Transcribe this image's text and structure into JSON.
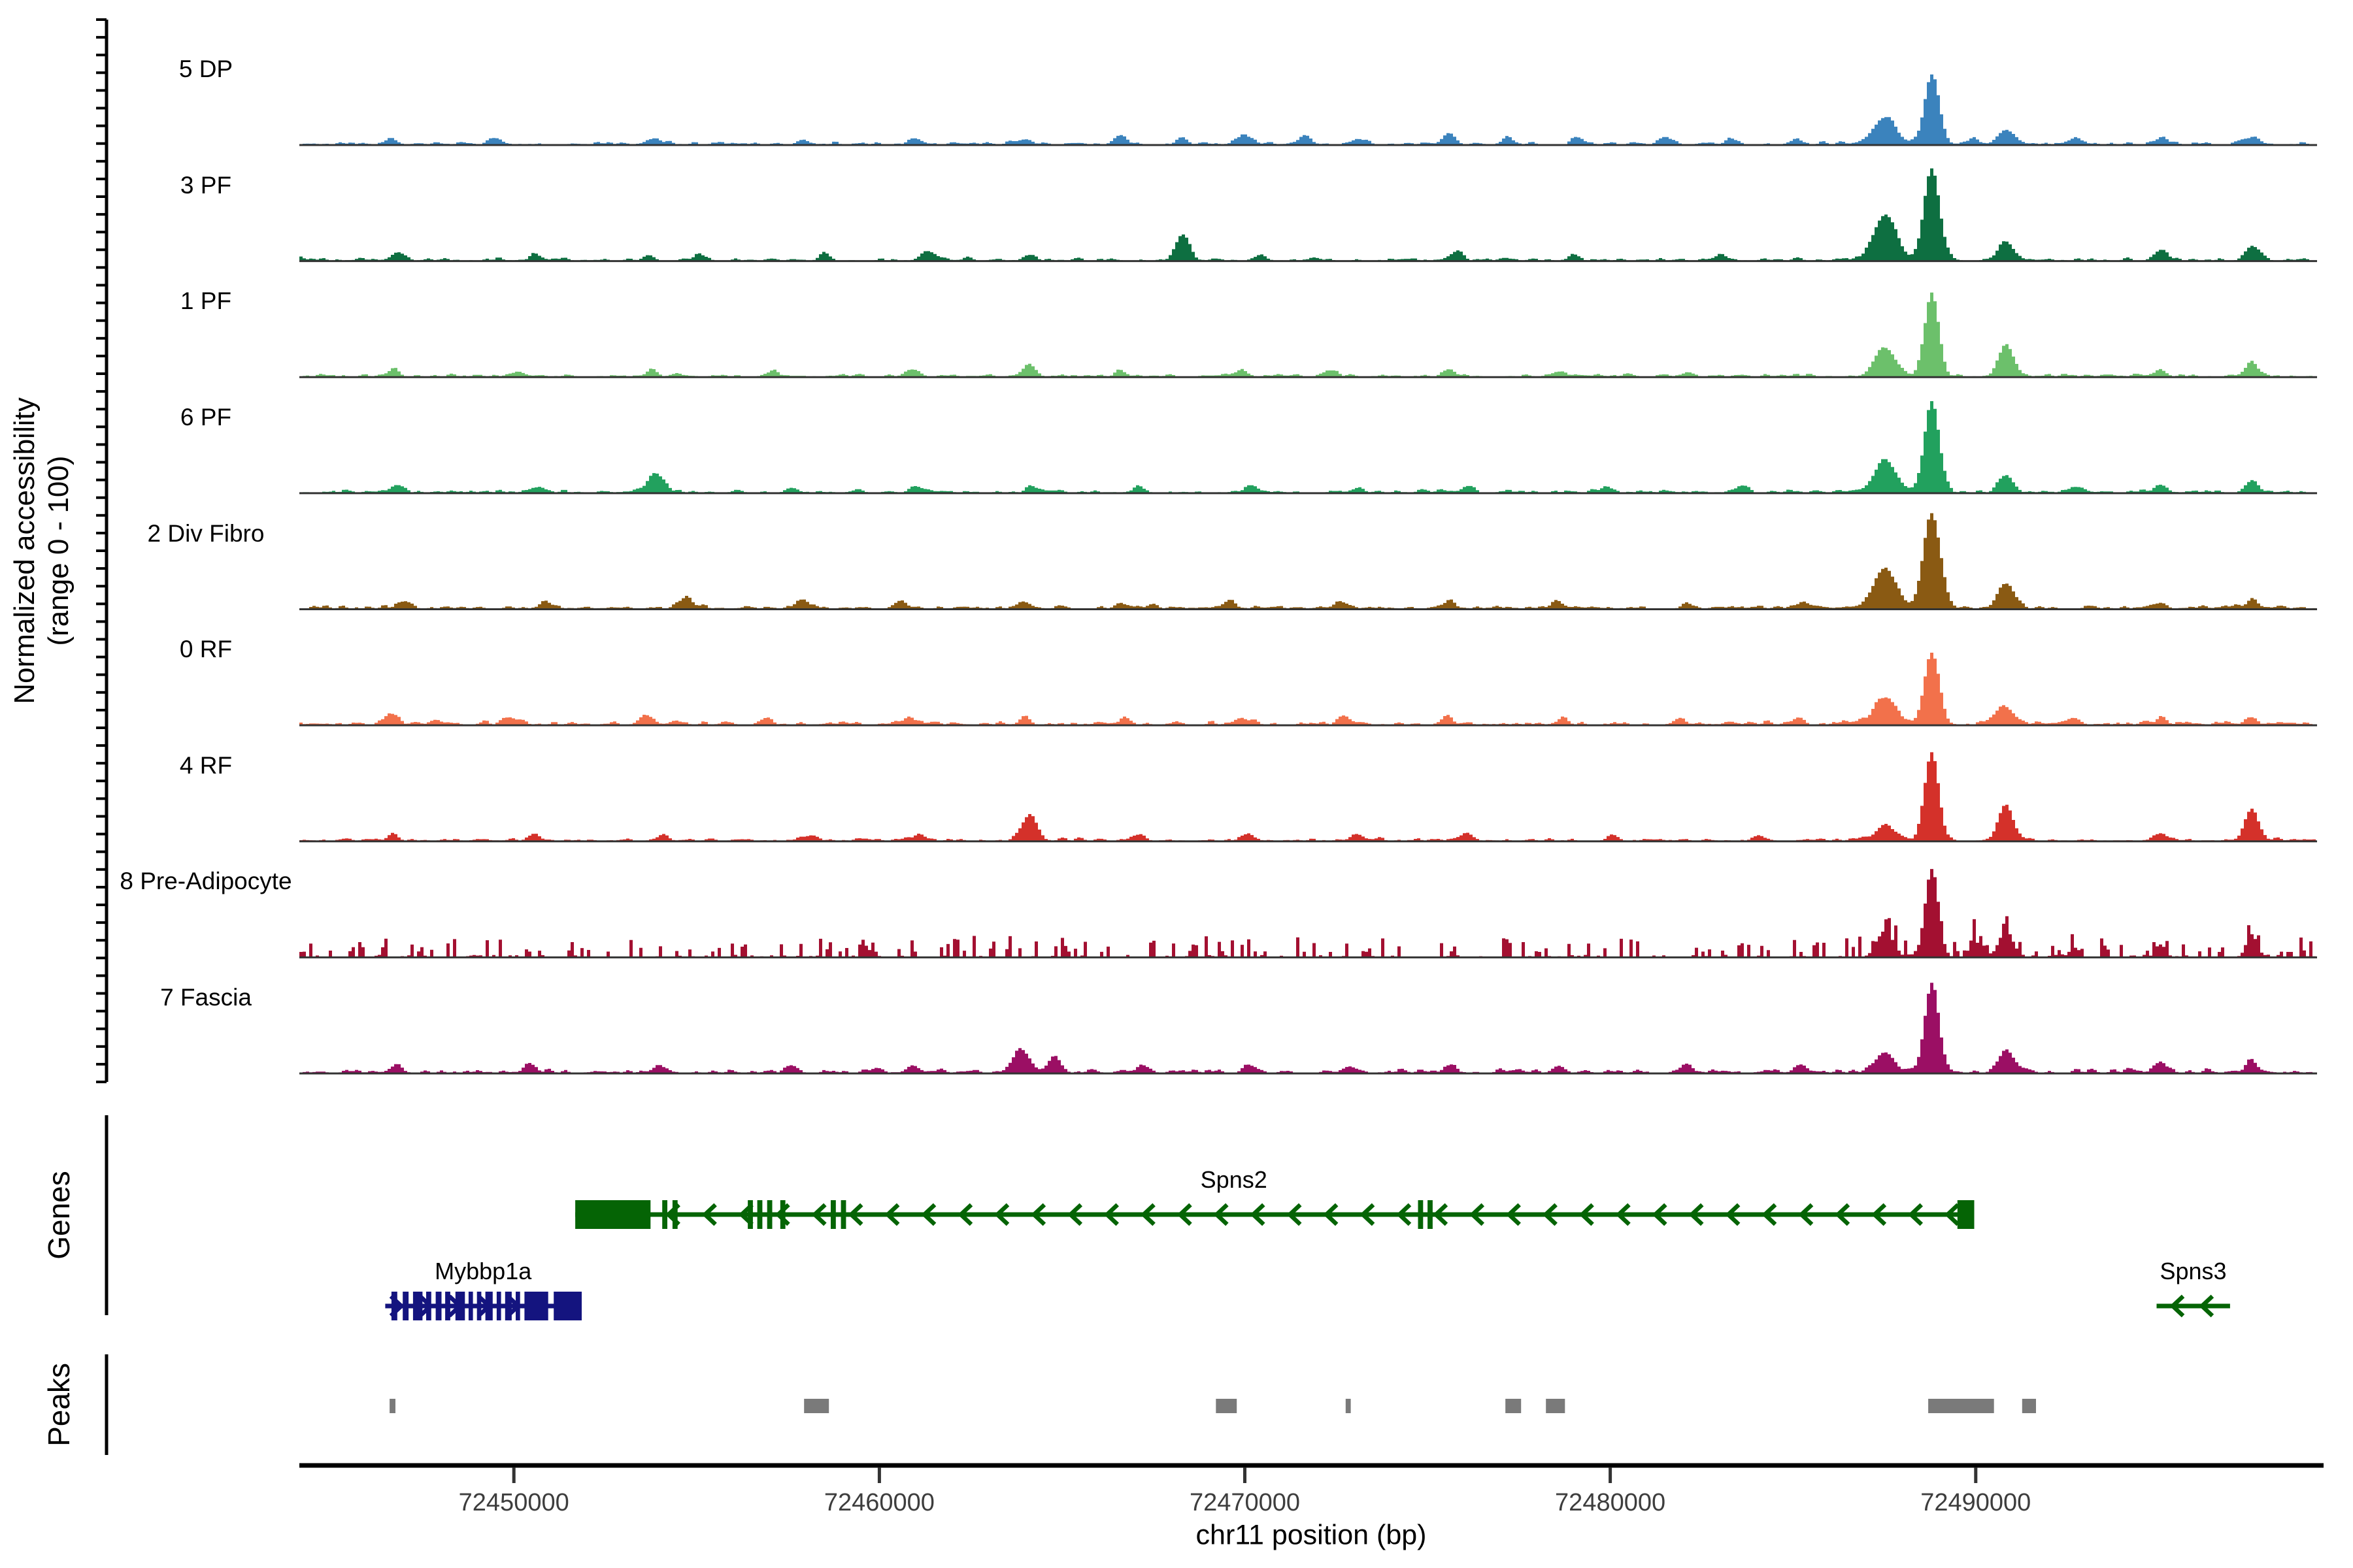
{
  "labels": {
    "y_axis_line1": "Normalized accessibility",
    "y_axis_line2": "(range 0 - 100)",
    "genes_section": "Genes",
    "peaks_section": "Peaks",
    "x_axis_title": "chr11 position (bp)"
  },
  "chart_data": {
    "type": "area",
    "subtype": "genome-browser-coverage-tracks",
    "region": {
      "chromosome": "chr11",
      "start": 72444130,
      "end": 72499340
    },
    "ylabel": "Normalized accessibility (range 0 - 100)",
    "xlabel": "chr11 position (bp)",
    "x_ticks": [
      72450000,
      72460000,
      72470000,
      72480000,
      72490000
    ],
    "y_range_per_track": [
      0,
      100
    ],
    "grid": false,
    "tracks": [
      {
        "label": "5 DP",
        "color": "#3b83bd",
        "noise": 7,
        "noise_style": "smooth",
        "peaks": [
          [
            72487520,
            28,
            680
          ],
          [
            72488800,
            74,
            440
          ],
          [
            72489950,
            7,
            260
          ],
          [
            72490830,
            16,
            480
          ],
          [
            72492700,
            6,
            380
          ],
          [
            72495060,
            7,
            350
          ],
          [
            72497560,
            7,
            380
          ],
          [
            72446650,
            7,
            320
          ],
          [
            72449500,
            5,
            400
          ],
          [
            72453800,
            6,
            400
          ],
          [
            72457900,
            5,
            320
          ],
          [
            72461000,
            7,
            350
          ],
          [
            72464000,
            6,
            320
          ],
          [
            72466600,
            9,
            400
          ],
          [
            72468300,
            7,
            320
          ],
          [
            72470000,
            10,
            360
          ],
          [
            72471600,
            8,
            320
          ],
          [
            72473100,
            7,
            320
          ],
          [
            72475600,
            13,
            360
          ],
          [
            72477200,
            8,
            320
          ],
          [
            72479100,
            7,
            320
          ],
          [
            72481500,
            7,
            350
          ],
          [
            72483300,
            6,
            320
          ],
          [
            72485100,
            5,
            320
          ]
        ]
      },
      {
        "label": "3 PF",
        "color": "#0e6f41",
        "noise": 7,
        "noise_style": "smooth",
        "peaks": [
          [
            72487520,
            47,
            700
          ],
          [
            72488800,
            98,
            470
          ],
          [
            72490830,
            20,
            460
          ],
          [
            72495060,
            12,
            360
          ],
          [
            72497560,
            16,
            400
          ],
          [
            72468300,
            27,
            420
          ],
          [
            72446800,
            9,
            350
          ],
          [
            72450600,
            7,
            350
          ],
          [
            72453700,
            6,
            320
          ],
          [
            72455100,
            6,
            320
          ],
          [
            72458500,
            7,
            320
          ],
          [
            72461300,
            10,
            360
          ],
          [
            72464100,
            6,
            320
          ],
          [
            72470400,
            6,
            320
          ],
          [
            72475800,
            8,
            320
          ],
          [
            72479000,
            6,
            320
          ],
          [
            72483000,
            6,
            320
          ]
        ]
      },
      {
        "label": "1 PF",
        "color": "#6cc06b",
        "noise": 7,
        "noise_style": "smooth",
        "peaks": [
          [
            72487520,
            29,
            650
          ],
          [
            72488800,
            89,
            420
          ],
          [
            72490830,
            32,
            460
          ],
          [
            72497560,
            15,
            360
          ],
          [
            72495060,
            7,
            320
          ],
          [
            72464100,
            12,
            400
          ],
          [
            72446700,
            8,
            320
          ],
          [
            72450100,
            6,
            350
          ],
          [
            72453800,
            7,
            320
          ],
          [
            72457100,
            6,
            320
          ],
          [
            72460900,
            8,
            350
          ],
          [
            72466600,
            7,
            320
          ],
          [
            72469900,
            7,
            320
          ],
          [
            72472400,
            6,
            320
          ],
          [
            72475600,
            8,
            320
          ],
          [
            72478600,
            6,
            320
          ],
          [
            72482100,
            5,
            320
          ]
        ]
      },
      {
        "label": "6 PF",
        "color": "#22a15e",
        "noise": 7,
        "noise_style": "smooth",
        "peaks": [
          [
            72487520,
            34,
            660
          ],
          [
            72488800,
            95,
            450
          ],
          [
            72490830,
            18,
            460
          ],
          [
            72495060,
            9,
            320
          ],
          [
            72497560,
            13,
            360
          ],
          [
            72492700,
            7,
            360
          ],
          [
            72453900,
            19,
            500
          ],
          [
            72446800,
            9,
            320
          ],
          [
            72450700,
            6,
            320
          ],
          [
            72457600,
            6,
            320
          ],
          [
            72461000,
            7,
            320
          ],
          [
            72464200,
            6,
            320
          ],
          [
            72467100,
            6,
            320
          ],
          [
            72470200,
            7,
            320
          ],
          [
            72473100,
            5,
            320
          ],
          [
            72476100,
            7,
            320
          ],
          [
            72479900,
            6,
            320
          ],
          [
            72483600,
            8,
            350
          ]
        ]
      },
      {
        "label": "2 Div Fibro",
        "color": "#8a5a13",
        "noise": 8,
        "noise_style": "smooth",
        "peaks": [
          [
            72487520,
            42,
            700
          ],
          [
            72488800,
            100,
            520
          ],
          [
            72490830,
            26,
            500
          ],
          [
            72454700,
            10,
            420
          ],
          [
            72447000,
            8,
            360
          ],
          [
            72450900,
            7,
            350
          ],
          [
            72457900,
            8,
            360
          ],
          [
            72460600,
            8,
            350
          ],
          [
            72463900,
            7,
            320
          ],
          [
            72466600,
            7,
            320
          ],
          [
            72469600,
            8,
            320
          ],
          [
            72472600,
            7,
            320
          ],
          [
            72475600,
            8,
            320
          ],
          [
            72478600,
            7,
            320
          ],
          [
            72482100,
            6,
            320
          ],
          [
            72485300,
            6,
            320
          ],
          [
            72497560,
            8,
            320
          ],
          [
            72495060,
            7,
            320
          ]
        ]
      },
      {
        "label": "0 RF",
        "color": "#f2714b",
        "noise": 9,
        "noise_style": "smooth",
        "peaks": [
          [
            72487520,
            28,
            660
          ],
          [
            72488800,
            76,
            450
          ],
          [
            72490830,
            18,
            500
          ],
          [
            72446650,
            12,
            380
          ],
          [
            72449900,
            7,
            350
          ],
          [
            72453600,
            9,
            400
          ],
          [
            72456900,
            7,
            350
          ],
          [
            72460800,
            8,
            350
          ],
          [
            72464000,
            7,
            320
          ],
          [
            72466700,
            7,
            320
          ],
          [
            72469900,
            8,
            350
          ],
          [
            72472700,
            7,
            320
          ],
          [
            72475500,
            8,
            320
          ],
          [
            72478700,
            7,
            320
          ],
          [
            72481900,
            6,
            320
          ],
          [
            72485100,
            6,
            320
          ],
          [
            72492700,
            7,
            350
          ],
          [
            72495060,
            6,
            320
          ],
          [
            72497560,
            7,
            320
          ]
        ]
      },
      {
        "label": "4 RF",
        "color": "#d4312a",
        "noise": 7,
        "noise_style": "smooth",
        "peaks": [
          [
            72487520,
            17,
            560
          ],
          [
            72488800,
            95,
            420
          ],
          [
            72490830,
            37,
            450
          ],
          [
            72497560,
            34,
            400
          ],
          [
            72464100,
            27,
            450
          ],
          [
            72446700,
            7,
            320
          ],
          [
            72450600,
            5,
            320
          ],
          [
            72454100,
            6,
            320
          ],
          [
            72458100,
            6,
            320
          ],
          [
            72461100,
            7,
            320
          ],
          [
            72467100,
            6,
            320
          ],
          [
            72470100,
            7,
            320
          ],
          [
            72473100,
            6,
            320
          ],
          [
            72476100,
            7,
            320
          ],
          [
            72480100,
            5,
            320
          ],
          [
            72484100,
            5,
            320
          ],
          [
            72495060,
            8,
            320
          ]
        ]
      },
      {
        "label": "8 Pre-Adipocyte",
        "color": "#a31031",
        "noise": 22,
        "noise_style": "spiky",
        "peaks": [
          [
            72487520,
            27,
            520
          ],
          [
            72488800,
            89,
            430
          ],
          [
            72489950,
            22,
            260
          ],
          [
            72490830,
            27,
            460
          ],
          [
            72497560,
            22,
            360
          ],
          [
            72495060,
            13,
            320
          ],
          [
            72492700,
            10,
            320
          ]
        ]
      },
      {
        "label": "7 Fascia",
        "color": "#9b0f64",
        "noise": 9,
        "noise_style": "smooth",
        "peaks": [
          [
            72487520,
            21,
            560
          ],
          [
            72488800,
            95,
            430
          ],
          [
            72490830,
            24,
            460
          ],
          [
            72495060,
            11,
            320
          ],
          [
            72497560,
            12,
            360
          ],
          [
            72463900,
            24,
            500
          ],
          [
            72464800,
            18,
            360
          ],
          [
            72446800,
            9,
            320
          ],
          [
            72450400,
            7,
            320
          ],
          [
            72454000,
            8,
            320
          ],
          [
            72457600,
            7,
            320
          ],
          [
            72460900,
            8,
            320
          ],
          [
            72467300,
            7,
            320
          ],
          [
            72470100,
            8,
            320
          ],
          [
            72472900,
            7,
            320
          ],
          [
            72475600,
            8,
            320
          ],
          [
            72478600,
            7,
            320
          ],
          [
            72482100,
            6,
            320
          ],
          [
            72485200,
            6,
            320
          ]
        ]
      }
    ],
    "genes": [
      {
        "name": "Spns2",
        "color": "#056405",
        "strand": "-",
        "row": 0,
        "start": 72451680,
        "end": 72489960,
        "label_x": 72469700,
        "arrow_step": 1000,
        "exons": [
          [
            72451680,
            72453740
          ],
          [
            72454060,
            72454200
          ],
          [
            72454340,
            72454480
          ],
          [
            72456400,
            72456540
          ],
          [
            72456660,
            72456800
          ],
          [
            72456930,
            72457070
          ],
          [
            72457290,
            72457430
          ],
          [
            72458670,
            72458810
          ],
          [
            72458950,
            72459090
          ],
          [
            72474740,
            72474880
          ],
          [
            72475000,
            72475140
          ],
          [
            72489500,
            72489960
          ]
        ]
      },
      {
        "name": "Mybbp1a",
        "color": "#14147f",
        "strand": "+",
        "row": 1,
        "start": 72446480,
        "end": 72451855,
        "label_x": 72449160,
        "arrow_step": 800,
        "exons": [
          [
            72446650,
            72446810
          ],
          [
            72446960,
            72447120
          ],
          [
            72447240,
            72447500
          ],
          [
            72447600,
            72447740
          ],
          [
            72447860,
            72448020
          ],
          [
            72448120,
            72448260
          ],
          [
            72448400,
            72448660
          ],
          [
            72448760,
            72448880
          ],
          [
            72448990,
            72449110
          ],
          [
            72449220,
            72449420
          ],
          [
            72449530,
            72449650
          ],
          [
            72449760,
            72449940
          ],
          [
            72450050,
            72450170
          ],
          [
            72450290,
            72450940
          ],
          [
            72451090,
            72451855
          ]
        ]
      },
      {
        "name": "Spns3",
        "color": "#056405",
        "strand": "-",
        "row": 1,
        "start": 72494950,
        "end": 72496960,
        "label_x": 72495950,
        "arrow_step": 800,
        "exons": []
      }
    ],
    "peak_regions": {
      "color": "#7a7a7a",
      "regions": [
        [
          72446600,
          72446760
        ],
        [
          72457940,
          72458620
        ],
        [
          72469210,
          72469780
        ],
        [
          72472760,
          72472900
        ],
        [
          72477130,
          72477560
        ],
        [
          72478240,
          72478760
        ],
        [
          72488700,
          72490500
        ],
        [
          72491270,
          72491650
        ]
      ]
    }
  }
}
